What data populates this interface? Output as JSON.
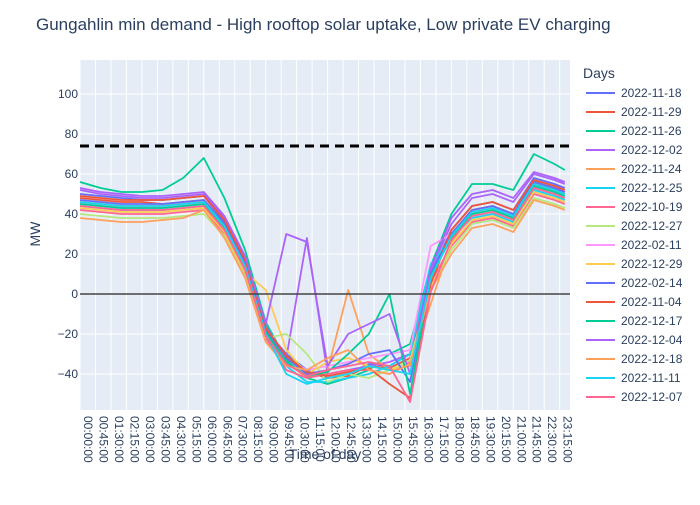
{
  "chart_data": {
    "type": "line",
    "title": "Gungahlin min demand - High rooftop solar uptake, Low private EV charging",
    "xlabel": "Time of day",
    "ylabel": "MW",
    "ylim": [
      -58,
      117
    ],
    "yticks": [
      -40,
      -20,
      0,
      20,
      40,
      60,
      80,
      100
    ],
    "xticks": [
      "00:00:00",
      "00:45:00",
      "01:30:00",
      "02:15:00",
      "03:00:00",
      "03:45:00",
      "04:30:00",
      "05:15:00",
      "06:00:00",
      "06:45:00",
      "07:30:00",
      "08:15:00",
      "09:00:00",
      "09:45:00",
      "10:30:00",
      "11:15:00",
      "12:00:00",
      "12:45:00",
      "13:30:00",
      "14:15:00",
      "15:00:00",
      "15:45:00",
      "16:30:00",
      "17:15:00",
      "18:00:00",
      "18:45:00",
      "19:30:00",
      "20:15:00",
      "21:00:00",
      "21:45:00",
      "22:30:00",
      "23:15:00"
    ],
    "grid": true,
    "legend": {
      "title": "Days",
      "position": "right"
    },
    "reference_line": {
      "y": 74,
      "style": "dashed",
      "color": "#000000"
    },
    "zero_line": {
      "y": 0,
      "color": "#444444"
    },
    "x_hours": [
      0,
      1,
      2,
      3,
      4,
      5,
      6,
      7,
      8,
      9,
      10,
      11,
      12,
      13,
      14,
      15,
      16,
      17,
      18,
      19,
      20,
      21,
      22,
      23,
      23.5
    ],
    "series": [
      {
        "name": "2022-11-18",
        "color": "#636efa",
        "values": [
          50,
          49,
          48,
          47,
          47,
          48,
          49,
          36,
          18,
          -18,
          -30,
          -38,
          -42,
          -40,
          -35,
          -36,
          -30,
          10,
          32,
          44,
          46,
          42,
          58,
          55,
          53
        ]
      },
      {
        "name": "2022-11-29",
        "color": "#EF553B",
        "values": [
          48,
          47,
          46,
          46,
          45,
          46,
          47,
          35,
          16,
          -17,
          -31,
          -39,
          -42,
          -41,
          -36,
          -37,
          -32,
          8,
          30,
          42,
          44,
          40,
          56,
          53,
          51
        ]
      },
      {
        "name": "2022-11-26",
        "color": "#00cc96",
        "values": [
          56,
          53,
          51,
          51,
          52,
          58,
          68,
          48,
          22,
          -14,
          -33,
          -42,
          -45,
          -42,
          -38,
          -30,
          -25,
          14,
          40,
          55,
          55,
          52,
          70,
          65,
          62
        ]
      },
      {
        "name": "2022-12-02",
        "color": "#ab63fa",
        "values": [
          52,
          50,
          49,
          48,
          48,
          49,
          50,
          38,
          18,
          -16,
          -32,
          28,
          -40,
          -38,
          -36,
          -34,
          -30,
          12,
          35,
          48,
          50,
          46,
          60,
          57,
          55
        ]
      },
      {
        "name": "2022-11-24",
        "color": "#FFA15A",
        "values": [
          46,
          45,
          44,
          44,
          44,
          45,
          46,
          34,
          14,
          -20,
          -34,
          -42,
          -38,
          2,
          -30,
          -38,
          -36,
          -5,
          26,
          40,
          42,
          38,
          55,
          52,
          50
        ]
      },
      {
        "name": "2022-12-25",
        "color": "#19d3f3",
        "values": [
          44,
          43,
          42,
          42,
          42,
          43,
          44,
          32,
          12,
          -20,
          -36,
          -44,
          -44,
          -42,
          -40,
          -36,
          -30,
          15,
          28,
          38,
          40,
          36,
          52,
          49,
          47
        ]
      },
      {
        "name": "2022-10-19",
        "color": "#FF6692",
        "values": [
          42,
          41,
          40,
          40,
          40,
          41,
          42,
          30,
          10,
          -22,
          -38,
          -42,
          -40,
          -38,
          -38,
          -40,
          -34,
          6,
          24,
          36,
          38,
          34,
          50,
          47,
          45
        ]
      },
      {
        "name": "2022-12-27",
        "color": "#B6E880",
        "values": [
          40,
          39,
          38,
          38,
          38,
          39,
          40,
          29,
          9,
          -22,
          -20,
          -30,
          -44,
          -40,
          -42,
          -38,
          -33,
          4,
          22,
          35,
          37,
          33,
          48,
          45,
          43
        ]
      },
      {
        "name": "2022-02-11",
        "color": "#FF97FF",
        "values": [
          45,
          44,
          43,
          43,
          43,
          44,
          45,
          33,
          13,
          -19,
          -32,
          -38,
          -36,
          -34,
          -32,
          -30,
          -28,
          24,
          30,
          40,
          42,
          38,
          54,
          51,
          49
        ]
      },
      {
        "name": "2022-12-29",
        "color": "#FECB52",
        "values": [
          43,
          42,
          41,
          41,
          41,
          42,
          43,
          31,
          11,
          2,
          -28,
          -40,
          -34,
          -32,
          -36,
          -38,
          -35,
          3,
          25,
          37,
          39,
          35,
          51,
          48,
          46
        ]
      },
      {
        "name": "2022-02-14",
        "color": "#636efa",
        "values": [
          47,
          46,
          45,
          45,
          45,
          46,
          47,
          35,
          15,
          -18,
          -32,
          -40,
          -38,
          -35,
          -30,
          -28,
          -44,
          10,
          30,
          42,
          44,
          40,
          56,
          53,
          51
        ]
      },
      {
        "name": "2022-11-04",
        "color": "#EF553B",
        "values": [
          49,
          48,
          47,
          47,
          47,
          48,
          49,
          37,
          17,
          -17,
          -31,
          -39,
          -41,
          -39,
          -37,
          -45,
          -52,
          5,
          32,
          44,
          46,
          42,
          57,
          54,
          52
        ]
      },
      {
        "name": "2022-12-17",
        "color": "#00cc96",
        "values": [
          45,
          44,
          43,
          43,
          43,
          44,
          45,
          33,
          13,
          -19,
          -34,
          -41,
          -39,
          -30,
          -20,
          0,
          -50,
          9,
          28,
          40,
          42,
          38,
          54,
          51,
          49
        ]
      },
      {
        "name": "2022-12-04",
        "color": "#ab63fa",
        "values": [
          53,
          51,
          50,
          49,
          49,
          50,
          51,
          39,
          19,
          -15,
          30,
          26,
          -36,
          -20,
          -15,
          -10,
          -40,
          13,
          38,
          50,
          52,
          48,
          61,
          58,
          56
        ]
      },
      {
        "name": "2022-12-18",
        "color": "#FFA15A",
        "values": [
          38,
          37,
          36,
          36,
          37,
          38,
          42,
          28,
          8,
          -24,
          -36,
          -38,
          -32,
          -28,
          -38,
          -40,
          -35,
          2,
          20,
          33,
          35,
          31,
          47,
          44,
          42
        ]
      },
      {
        "name": "2022-11-11",
        "color": "#19d3f3",
        "values": [
          46,
          45,
          44,
          44,
          44,
          45,
          46,
          34,
          14,
          -20,
          -40,
          -45,
          -42,
          -40,
          -36,
          -38,
          -40,
          8,
          29,
          41,
          43,
          39,
          55,
          52,
          50
        ]
      },
      {
        "name": "2022-12-07",
        "color": "#FF6692",
        "values": [
          44,
          43,
          42,
          42,
          42,
          43,
          44,
          32,
          12,
          -21,
          -35,
          -41,
          -38,
          -36,
          -34,
          -36,
          -54,
          1,
          27,
          39,
          41,
          37,
          53,
          50,
          48
        ]
      }
    ]
  }
}
